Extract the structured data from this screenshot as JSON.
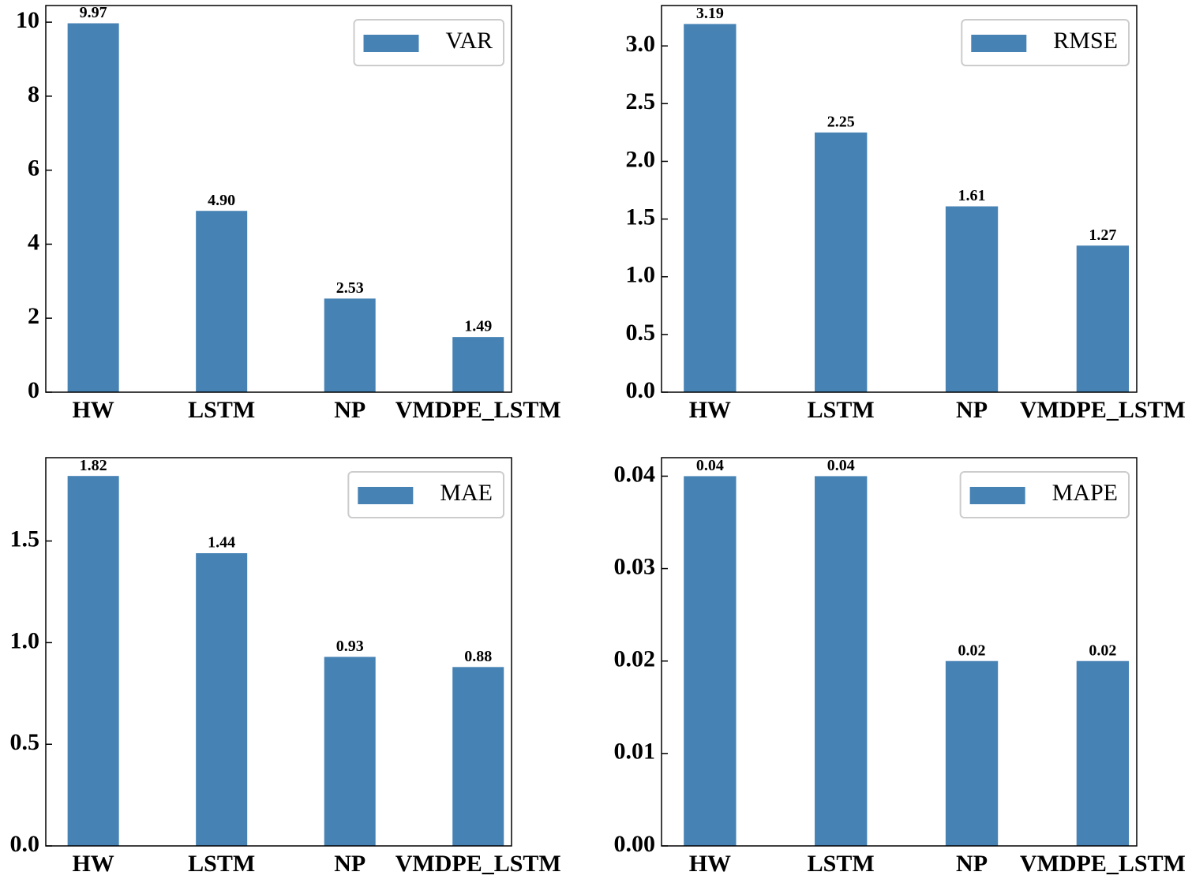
{
  "chart_data": [
    {
      "type": "bar",
      "categories": [
        "HW",
        "LSTM",
        "NP",
        "VMDPE_LSTM"
      ],
      "series": [
        {
          "name": "VAR",
          "color": "#4682b4",
          "values": [
            9.97,
            4.9,
            2.53,
            1.49
          ],
          "value_labels": [
            "9.97",
            "4.90",
            "2.53",
            "1.49"
          ]
        }
      ],
      "ylim": [
        0,
        10.45
      ],
      "yticks": [
        0,
        2,
        4,
        6,
        8,
        10
      ],
      "legend": "upper right"
    },
    {
      "type": "bar",
      "categories": [
        "HW",
        "LSTM",
        "NP",
        "VMDPE_LSTM"
      ],
      "series": [
        {
          "name": "RMSE",
          "color": "#4682b4",
          "values": [
            3.19,
            2.25,
            1.61,
            1.27
          ]
        }
      ],
      "ylim": [
        0,
        3.35
      ],
      "yticks": [
        {
          "value": 0,
          "label": "0.0"
        },
        0.5,
        {
          "value": 1,
          "label": "1.0"
        },
        1.5,
        {
          "value": 2,
          "label": "2.0"
        },
        2.5,
        {
          "value": 3,
          "label": "3.0"
        }
      ],
      "legend": "upper right"
    },
    {
      "type": "bar",
      "categories": [
        "HW",
        "LSTM",
        "NP",
        "VMDPE_LSTM"
      ],
      "series": [
        {
          "name": "MAE",
          "color": "#4682b4",
          "values": [
            1.82,
            1.44,
            0.93,
            0.88
          ]
        }
      ],
      "ylim": [
        0,
        1.91
      ],
      "yticks": [
        {
          "value": 0,
          "label": "0.0"
        },
        0.5,
        {
          "value": 1,
          "label": "1.0"
        },
        1.5
      ],
      "legend": "upper right"
    },
    {
      "type": "bar",
      "categories": [
        "HW",
        "LSTM",
        "NP",
        "VMDPE_LSTM"
      ],
      "series": [
        {
          "name": "MAPE",
          "color": "#4682b4",
          "values": [
            0.04,
            0.04,
            0.02,
            0.02
          ]
        }
      ],
      "ylim": [
        0,
        0.042
      ],
      "yticks": [
        {
          "value": 0,
          "label": "0.00"
        },
        0.01,
        0.02,
        0.03,
        0.04
      ],
      "legend": "upper right"
    }
  ]
}
